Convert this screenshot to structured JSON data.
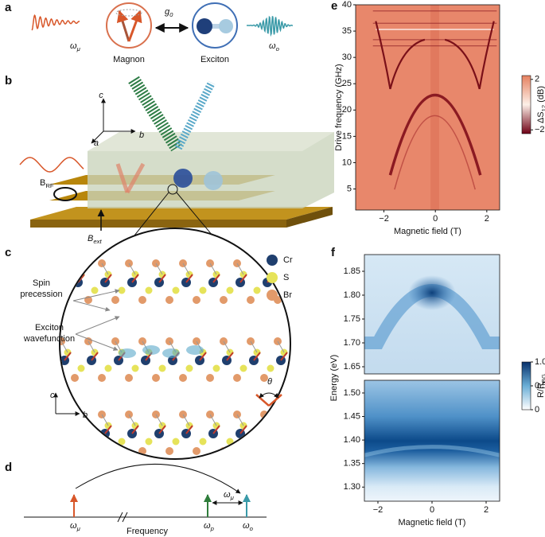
{
  "panel_labels": [
    "a",
    "b",
    "c",
    "d",
    "e",
    "f"
  ],
  "panel_a": {
    "wave_in": {
      "base": "ω",
      "sub": "μ"
    },
    "coupling": {
      "base": "g",
      "sub": "0"
    },
    "magnon": "Magnon",
    "exciton": "Exciton",
    "wave_out": {
      "base": "ω",
      "sub": "o"
    }
  },
  "panel_b": {
    "axis_c": "c",
    "axis_b": "b",
    "axis_a": "a",
    "b_rf": {
      "base": "B",
      "sub": "RF"
    },
    "b_ext": {
      "base": "B",
      "sub": "ext"
    }
  },
  "panel_c": {
    "legend": [
      "Cr",
      "S",
      "Br"
    ],
    "spin_precession": [
      "Spin",
      "precession"
    ],
    "exciton_wavefunction": [
      "Exciton",
      "wavefunction"
    ],
    "axis_c": "c",
    "axis_b": "b",
    "angle": "θ"
  },
  "panel_d": {
    "omega_mu": {
      "base": "ω",
      "sub": "μ"
    },
    "omega_p": {
      "base": "ω",
      "sub": "p"
    },
    "omega_o": {
      "base": "ω",
      "sub": "o"
    },
    "spacing": {
      "base": "ω",
      "sub": "μ"
    },
    "axis": "Frequency"
  },
  "chart_data": [
    {
      "type": "heatmap",
      "xlabel": "Magnetic field (T)",
      "ylabel": "Drive frequency (GHz)",
      "xlim": [
        -3.1,
        2.5
      ],
      "xticks": [
        {
          "value": -2,
          "label": "−2"
        },
        0,
        2
      ],
      "ylim": [
        1,
        40
      ],
      "yticks": [
        5,
        10,
        15,
        20,
        25,
        30,
        35,
        40
      ],
      "colorbar": {
        "label": {
          "base": "ΔS",
          "sub": "12",
          "rest": " (dB)"
        },
        "lim": [
          -2.3,
          2.3
        ],
        "ticks": [
          {
            "value": -2,
            "label": "−2"
          },
          2
        ]
      }
    },
    {
      "type": "heatmap",
      "ylabel": "Energy (eV)",
      "xlim": [
        -2.5,
        2.5
      ],
      "ylim": [
        1.635,
        1.885
      ],
      "yticks": [
        1.65,
        {
          "value": 1.7,
          "label": "1.70"
        },
        1.75,
        {
          "value": 1.8,
          "label": "1.80"
        },
        1.85
      ],
      "colorbar": {
        "label": {
          "base": "R/R",
          "sub": "BG"
        },
        "lim": [
          0,
          1
        ],
        "ticks": [
          0,
          0.5,
          {
            "value": 1,
            "label": "1.0"
          }
        ]
      }
    },
    {
      "type": "heatmap",
      "xlabel": "Magnetic field (T)",
      "xlim": [
        -2.5,
        2.5
      ],
      "xticks": [
        {
          "value": -2,
          "label": "−2"
        },
        0,
        2
      ],
      "ylim": [
        1.27,
        1.527
      ],
      "yticks": [
        {
          "value": 1.3,
          "label": "1.30"
        },
        1.35,
        {
          "value": 1.4,
          "label": "1.40"
        },
        1.45,
        {
          "value": 1.5,
          "label": "1.50"
        }
      ]
    }
  ]
}
